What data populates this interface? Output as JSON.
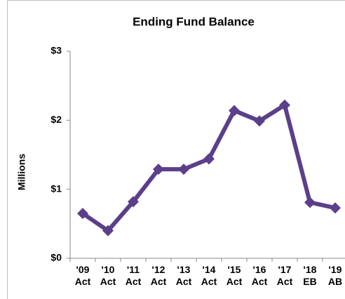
{
  "chart_data": {
    "type": "line",
    "title": "Ending Fund Balance",
    "y_label": "Millions",
    "categories": [
      "'09 Act",
      "'10 Act",
      "'11 Act",
      "'12 Act",
      "'13 Act",
      "'14 Act",
      "'15 Act",
      "'16 Act",
      "'17 Act",
      "'18 EB",
      "'19 AB"
    ],
    "series": [
      {
        "name": "Ending Fund Balance",
        "color": "#5b3f8a",
        "values": [
          0.65,
          0.4,
          0.82,
          1.29,
          1.29,
          1.44,
          2.14,
          1.99,
          2.22,
          0.81,
          0.73
        ]
      }
    ],
    "ylim": [
      0,
      3
    ],
    "yticks": [
      {
        "value": 0,
        "label": "$0"
      },
      {
        "value": 1,
        "label": "$1"
      },
      {
        "value": 2,
        "label": "$2"
      },
      {
        "value": 3,
        "label": "$3"
      }
    ],
    "grid": false,
    "legend": false
  }
}
